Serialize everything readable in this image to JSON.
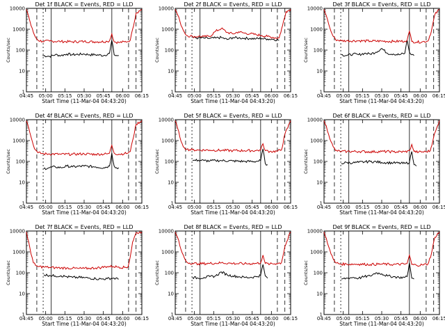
{
  "chart_data": [
    {
      "type": "line",
      "title": "Det 1f BLACK = Events, RED = LLD",
      "xlabel": "Start Time (11-Mar-04 04:43:20)",
      "ylabel": "Counts/sec",
      "yscale": "log",
      "ylim": [
        1,
        10000
      ],
      "yticks": [
        "1",
        "10",
        "100",
        "1000",
        "10000"
      ],
      "xticks": [
        "04:45",
        "05:00",
        "05:15",
        "05:30",
        "05:45",
        "06:00",
        "06:15"
      ],
      "series": [
        {
          "name": "Events",
          "color": "#000000",
          "x": [
            0.05,
            0.09,
            0.14,
            0.2,
            0.25,
            0.3,
            0.35,
            0.4,
            0.5,
            0.55,
            0.6,
            0.67,
            0.72,
            0.74,
            0.76,
            0.78,
            0.8
          ],
          "y": [
            0,
            0,
            55,
            50,
            60,
            55,
            65,
            60,
            65,
            60,
            60,
            55,
            70,
            300,
            60,
            55,
            55
          ]
        },
        {
          "name": "LLD",
          "color": "#cc0000",
          "x": [
            0.0,
            0.02,
            0.04,
            0.06,
            0.08,
            0.1,
            0.14,
            0.2,
            0.3,
            0.4,
            0.5,
            0.6,
            0.7,
            0.72,
            0.74,
            0.76,
            0.8,
            0.85,
            0.88,
            0.9,
            0.92,
            0.95,
            1.0
          ],
          "y": [
            9000,
            4000,
            1500,
            700,
            400,
            300,
            260,
            270,
            260,
            250,
            260,
            250,
            260,
            280,
            600,
            250,
            230,
            250,
            260,
            300,
            1000,
            6000,
            9000
          ]
        }
      ]
    },
    {
      "type": "line",
      "title": "Det 2f BLACK = Events, RED = LLD",
      "xlabel": "Start Time (11-Mar-04 04:43:20)",
      "ylabel": "Counts/sec",
      "yscale": "log",
      "ylim": [
        1,
        10000
      ],
      "yticks": [
        "1",
        "10",
        "100",
        "1000",
        "10000"
      ],
      "xticks": [
        "04:45",
        "05:00",
        "05:15",
        "05:30",
        "05:45",
        "06:00",
        "06:15"
      ],
      "series": [
        {
          "name": "Events",
          "color": "#000000",
          "x": [
            0.05,
            0.1,
            0.15,
            0.2,
            0.25,
            0.3,
            0.35,
            0.4,
            0.45,
            0.5,
            0.55,
            0.6,
            0.65,
            0.7,
            0.75,
            0.8,
            0.85,
            0.9
          ],
          "y": [
            0,
            0,
            400,
            380,
            380,
            360,
            380,
            400,
            320,
            400,
            380,
            370,
            360,
            350,
            360,
            340,
            330,
            300
          ]
        },
        {
          "name": "LLD",
          "color": "#cc0000",
          "x": [
            0.0,
            0.02,
            0.04,
            0.06,
            0.08,
            0.1,
            0.15,
            0.2,
            0.25,
            0.3,
            0.35,
            0.4,
            0.45,
            0.5,
            0.55,
            0.6,
            0.65,
            0.7,
            0.75,
            0.8,
            0.85,
            0.9,
            0.93,
            0.96,
            1.0
          ],
          "y": [
            9000,
            5000,
            2500,
            1200,
            700,
            500,
            450,
            450,
            440,
            460,
            800,
            1100,
            700,
            600,
            750,
            650,
            600,
            550,
            500,
            450,
            400,
            380,
            1500,
            7000,
            9000
          ]
        }
      ]
    },
    {
      "type": "line",
      "title": "Det 3f BLACK = Events, RED = LLD",
      "xlabel": "Start Time (11-Mar-04 04:43:20)",
      "ylabel": "Counts/sec",
      "yscale": "log",
      "ylim": [
        1,
        10000
      ],
      "yticks": [
        "1",
        "10",
        "100",
        "1000",
        "10000"
      ],
      "xticks": [
        "04:45",
        "05:00",
        "05:15",
        "05:30",
        "05:45",
        "06:00",
        "06:15"
      ],
      "series": [
        {
          "name": "Events",
          "color": "#000000",
          "x": [
            0.05,
            0.1,
            0.15,
            0.2,
            0.25,
            0.3,
            0.35,
            0.4,
            0.45,
            0.5,
            0.55,
            0.6,
            0.65,
            0.7,
            0.72,
            0.74,
            0.76,
            0.78
          ],
          "y": [
            0,
            0,
            60,
            55,
            65,
            60,
            70,
            65,
            80,
            120,
            70,
            65,
            60,
            70,
            300,
            80,
            60,
            55
          ]
        },
        {
          "name": "LLD",
          "color": "#cc0000",
          "x": [
            0.0,
            0.02,
            0.04,
            0.06,
            0.08,
            0.1,
            0.15,
            0.2,
            0.3,
            0.4,
            0.5,
            0.6,
            0.7,
            0.72,
            0.74,
            0.76,
            0.8,
            0.85,
            0.9,
            0.93,
            0.96,
            1.0
          ],
          "y": [
            9000,
            4500,
            1800,
            800,
            450,
            320,
            280,
            280,
            280,
            270,
            270,
            260,
            270,
            300,
            800,
            260,
            240,
            250,
            270,
            800,
            5000,
            9000
          ]
        }
      ]
    },
    {
      "type": "line",
      "title": "Det 4f BLACK = Events, RED = LLD",
      "xlabel": "Start Time (11-Mar-04 04:43:20)",
      "ylabel": "Counts/sec",
      "yscale": "log",
      "ylim": [
        1,
        10000
      ],
      "yticks": [
        "1",
        "10",
        "100",
        "1000",
        "10000"
      ],
      "xticks": [
        "04:45",
        "05:00",
        "05:15",
        "05:30",
        "05:45",
        "06:00",
        "06:15"
      ],
      "series": [
        {
          "name": "Events",
          "color": "#000000",
          "x": [
            0.05,
            0.1,
            0.15,
            0.2,
            0.25,
            0.3,
            0.35,
            0.4,
            0.5,
            0.6,
            0.67,
            0.72,
            0.74,
            0.76,
            0.78,
            0.8
          ],
          "y": [
            0,
            0,
            45,
            50,
            55,
            50,
            60,
            55,
            60,
            55,
            50,
            60,
            250,
            60,
            50,
            50
          ]
        },
        {
          "name": "LLD",
          "color": "#cc0000",
          "x": [
            0.0,
            0.02,
            0.04,
            0.06,
            0.08,
            0.1,
            0.15,
            0.2,
            0.3,
            0.4,
            0.5,
            0.6,
            0.7,
            0.72,
            0.74,
            0.76,
            0.8,
            0.85,
            0.88,
            0.9,
            0.92,
            0.95,
            1.0
          ],
          "y": [
            9000,
            4000,
            1500,
            600,
            350,
            260,
            230,
            230,
            220,
            220,
            230,
            220,
            230,
            250,
            600,
            250,
            220,
            240,
            250,
            300,
            1000,
            6000,
            9000
          ]
        }
      ]
    },
    {
      "type": "line",
      "title": "Det 5f BLACK = Events, RED = LLD",
      "xlabel": "Start Time (11-Mar-04 04:43:20)",
      "ylabel": "Counts/sec",
      "yscale": "log",
      "ylim": [
        1,
        10000
      ],
      "yticks": [
        "1",
        "10",
        "100",
        "1000",
        "10000"
      ],
      "xticks": [
        "04:45",
        "05:00",
        "05:15",
        "05:30",
        "05:45",
        "06:00",
        "06:15"
      ],
      "series": [
        {
          "name": "Events",
          "color": "#000000",
          "x": [
            0.05,
            0.1,
            0.15,
            0.2,
            0.25,
            0.3,
            0.35,
            0.4,
            0.5,
            0.6,
            0.7,
            0.74,
            0.76,
            0.78,
            0.8
          ],
          "y": [
            0,
            0,
            110,
            115,
            110,
            105,
            110,
            110,
            105,
            100,
            100,
            110,
            400,
            80,
            70
          ]
        },
        {
          "name": "LLD",
          "color": "#cc0000",
          "x": [
            0.0,
            0.02,
            0.04,
            0.06,
            0.08,
            0.1,
            0.15,
            0.2,
            0.3,
            0.4,
            0.5,
            0.6,
            0.7,
            0.74,
            0.76,
            0.78,
            0.82,
            0.88,
            0.92,
            0.95,
            1.0
          ],
          "y": [
            9000,
            4000,
            1500,
            700,
            450,
            380,
            360,
            350,
            350,
            340,
            330,
            330,
            330,
            350,
            700,
            330,
            300,
            310,
            350,
            2000,
            9000
          ]
        }
      ]
    },
    {
      "type": "line",
      "title": "Det 6f BLACK = Events, RED = LLD",
      "xlabel": "Start Time (11-Mar-04 04:43:20)",
      "ylabel": "Counts/sec",
      "yscale": "log",
      "ylim": [
        1,
        10000
      ],
      "yticks": [
        "1",
        "10",
        "100",
        "1000",
        "10000"
      ],
      "xticks": [
        "04:45",
        "05:00",
        "05:15",
        "05:30",
        "05:45",
        "06:00",
        "06:15"
      ],
      "series": [
        {
          "name": "Events",
          "color": "#000000",
          "x": [
            0.05,
            0.1,
            0.15,
            0.2,
            0.25,
            0.3,
            0.35,
            0.4,
            0.5,
            0.6,
            0.7,
            0.74,
            0.76,
            0.78,
            0.8
          ],
          "y": [
            0,
            0,
            80,
            90,
            85,
            90,
            95,
            100,
            90,
            85,
            80,
            90,
            300,
            70,
            60
          ]
        },
        {
          "name": "LLD",
          "color": "#cc0000",
          "x": [
            0.0,
            0.02,
            0.04,
            0.06,
            0.08,
            0.1,
            0.15,
            0.2,
            0.3,
            0.4,
            0.5,
            0.6,
            0.7,
            0.74,
            0.76,
            0.78,
            0.82,
            0.88,
            0.92,
            0.95,
            1.0
          ],
          "y": [
            9000,
            5000,
            2000,
            900,
            500,
            330,
            300,
            300,
            300,
            290,
            300,
            290,
            290,
            320,
            650,
            300,
            280,
            290,
            320,
            1500,
            9000
          ]
        }
      ]
    },
    {
      "type": "line",
      "title": "Det 7f BLACK = Events, RED = LLD",
      "xlabel": "Start Time (11-Mar-04 04:43:20)",
      "ylabel": "Counts/sec",
      "yscale": "log",
      "ylim": [
        1,
        10000
      ],
      "yticks": [
        "1",
        "10",
        "100",
        "1000",
        "10000"
      ],
      "xticks": [
        "04:45",
        "05:00",
        "05:15",
        "05:30",
        "05:45",
        "06:00",
        "06:15"
      ],
      "series": [
        {
          "name": "Events",
          "color": "#000000",
          "x": [
            0.05,
            0.1,
            0.15,
            0.2,
            0.25,
            0.3,
            0.35,
            0.4,
            0.45,
            0.5,
            0.55,
            0.6,
            0.65,
            0.7,
            0.75,
            0.8
          ],
          "y": [
            0,
            0,
            80,
            75,
            70,
            72,
            65,
            60,
            60,
            58,
            55,
            52,
            50,
            52,
            55,
            50
          ]
        },
        {
          "name": "LLD",
          "color": "#cc0000",
          "x": [
            0.0,
            0.02,
            0.04,
            0.06,
            0.08,
            0.1,
            0.15,
            0.2,
            0.25,
            0.3,
            0.35,
            0.4,
            0.45,
            0.5,
            0.55,
            0.6,
            0.65,
            0.7,
            0.75,
            0.8,
            0.85,
            0.88,
            0.9,
            0.92,
            0.95,
            1.0
          ],
          "y": [
            9000,
            3000,
            800,
            300,
            220,
            200,
            190,
            180,
            175,
            170,
            170,
            165,
            160,
            160,
            165,
            170,
            180,
            200,
            200,
            190,
            180,
            190,
            600,
            3000,
            8000,
            9000
          ]
        }
      ]
    },
    {
      "type": "line",
      "title": "Det 8f BLACK = Events, RED = LLD",
      "xlabel": "Start Time (11-Mar-04 04:43:20)",
      "ylabel": "Counts/sec",
      "yscale": "log",
      "ylim": [
        1,
        10000
      ],
      "yticks": [
        "1",
        "10",
        "100",
        "1000",
        "10000"
      ],
      "xticks": [
        "04:45",
        "05:00",
        "05:15",
        "05:30",
        "05:45",
        "06:00",
        "06:15"
      ],
      "series": [
        {
          "name": "Events",
          "color": "#000000",
          "x": [
            0.05,
            0.1,
            0.15,
            0.2,
            0.25,
            0.3,
            0.35,
            0.4,
            0.45,
            0.5,
            0.55,
            0.6,
            0.65,
            0.7,
            0.74,
            0.76,
            0.78,
            0.8
          ],
          "y": [
            0,
            0,
            60,
            55,
            60,
            65,
            70,
            110,
            80,
            70,
            65,
            60,
            60,
            65,
            75,
            250,
            70,
            55
          ]
        },
        {
          "name": "LLD",
          "color": "#cc0000",
          "x": [
            0.0,
            0.02,
            0.04,
            0.06,
            0.08,
            0.1,
            0.15,
            0.2,
            0.3,
            0.4,
            0.5,
            0.6,
            0.7,
            0.74,
            0.76,
            0.78,
            0.82,
            0.88,
            0.92,
            0.95,
            1.0
          ],
          "y": [
            9000,
            5000,
            2000,
            900,
            500,
            320,
            280,
            270,
            280,
            300,
            280,
            270,
            280,
            300,
            700,
            280,
            260,
            280,
            300,
            1800,
            9000
          ]
        }
      ]
    },
    {
      "type": "line",
      "title": "Det 9f BLACK = Events, RED = LLD",
      "xlabel": "Start Time (11-Mar-04 04:43:20)",
      "ylabel": "Counts/sec",
      "yscale": "log",
      "ylim": [
        1,
        10000
      ],
      "yticks": [
        "1",
        "10",
        "100",
        "1000",
        "10000"
      ],
      "xticks": [
        "04:45",
        "05:00",
        "05:15",
        "05:30",
        "05:45",
        "06:00",
        "06:15"
      ],
      "series": [
        {
          "name": "Events",
          "color": "#000000",
          "x": [
            0.05,
            0.1,
            0.15,
            0.2,
            0.25,
            0.3,
            0.35,
            0.4,
            0.45,
            0.5,
            0.55,
            0.6,
            0.65,
            0.7,
            0.72,
            0.74,
            0.76,
            0.78
          ],
          "y": [
            0,
            0,
            50,
            55,
            60,
            55,
            65,
            70,
            100,
            90,
            70,
            65,
            60,
            60,
            65,
            300,
            55,
            50
          ]
        },
        {
          "name": "LLD",
          "color": "#cc0000",
          "x": [
            0.0,
            0.02,
            0.04,
            0.06,
            0.08,
            0.1,
            0.15,
            0.2,
            0.3,
            0.4,
            0.5,
            0.6,
            0.7,
            0.72,
            0.74,
            0.76,
            0.8,
            0.85,
            0.9,
            0.93,
            0.96,
            1.0
          ],
          "y": [
            9000,
            4500,
            1800,
            800,
            450,
            300,
            260,
            260,
            260,
            250,
            260,
            250,
            260,
            280,
            700,
            250,
            230,
            240,
            260,
            800,
            5000,
            9000
          ]
        }
      ]
    }
  ]
}
